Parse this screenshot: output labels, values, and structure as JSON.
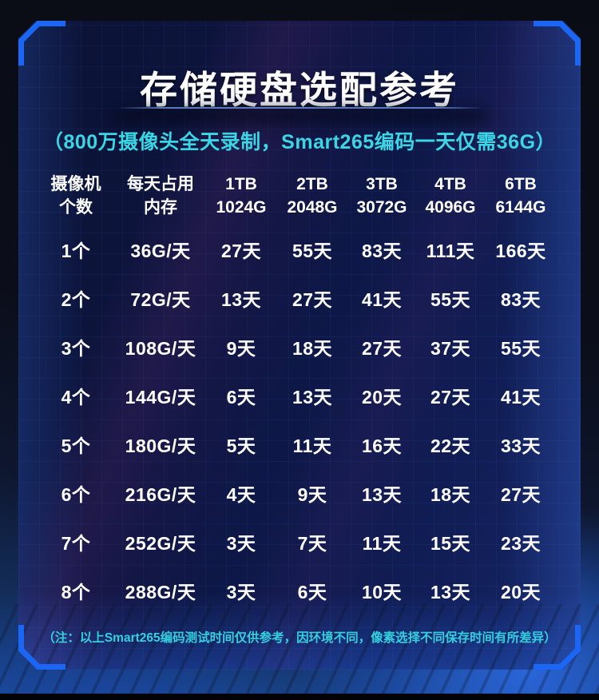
{
  "chart_data": {
    "type": "table",
    "title": "存储硬盘选配参考",
    "subtitle": "（800万摄像头全天录制，Smart265编码一天仅需36G）",
    "footnote": "（注：以上Smart265编码测试时间仅供参考，因环境不同，像素选择不同保存时间有所差异）",
    "columns": [
      {
        "line1": "摄像机",
        "line2": "个数"
      },
      {
        "line1": "每天占用",
        "line2": "内存"
      },
      {
        "line1": "1TB",
        "line2": "1024G"
      },
      {
        "line1": "2TB",
        "line2": "2048G"
      },
      {
        "line1": "3TB",
        "line2": "3072G"
      },
      {
        "line1": "4TB",
        "line2": "4096G"
      },
      {
        "line1": "6TB",
        "line2": "6144G"
      }
    ],
    "rows": [
      [
        "1个",
        "36G/天",
        "27天",
        "55天",
        "83天",
        "111天",
        "166天"
      ],
      [
        "2个",
        "72G/天",
        "13天",
        "27天",
        "41天",
        "55天",
        "83天"
      ],
      [
        "3个",
        "108G/天",
        "9天",
        "18天",
        "27天",
        "37天",
        "55天"
      ],
      [
        "4个",
        "144G/天",
        "6天",
        "13天",
        "20天",
        "27天",
        "41天"
      ],
      [
        "5个",
        "180G/天",
        "5天",
        "11天",
        "16天",
        "22天",
        "33天"
      ],
      [
        "6个",
        "216G/天",
        "4天",
        "9天",
        "13天",
        "18天",
        "27天"
      ],
      [
        "7个",
        "252G/天",
        "3天",
        "7天",
        "11天",
        "15天",
        "23天"
      ],
      [
        "8个",
        "288G/天",
        "3天",
        "6天",
        "10天",
        "13天",
        "20天"
      ]
    ],
    "legend_position": "none",
    "grid": true
  },
  "colors": {
    "bracket_blue": "#1b66f5",
    "cyan_text": "#3bd6e6",
    "table_text": "#ffffff",
    "panel_background": "#0d1544",
    "outer_glow_blue": "#2767e0"
  }
}
